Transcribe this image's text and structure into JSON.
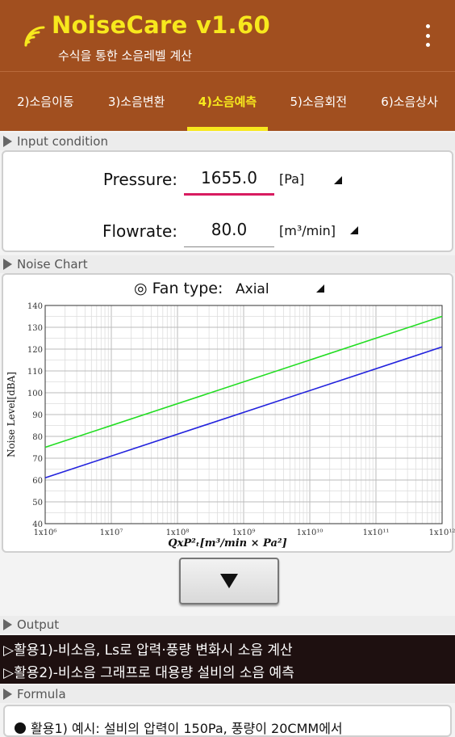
{
  "header": {
    "title": "NoiseCare v1.60",
    "subtitle": "수식을 통한 소음레벨 계산",
    "logo_icon": "wifi-signal-icon",
    "menu_icon": "more-vert-icon",
    "bg_color": "#a14f1f",
    "title_color": "#f7e81d"
  },
  "tabs": [
    {
      "label": "2)소음이동",
      "active": false
    },
    {
      "label": "3)소음변환",
      "active": false
    },
    {
      "label": "4)소음예측",
      "active": true
    },
    {
      "label": "5)소음회전",
      "active": false
    },
    {
      "label": "6)소음상사",
      "active": false
    }
  ],
  "sections": {
    "input": "Input condition",
    "chart": "Noise Chart",
    "output": "Output",
    "formula": "Formula"
  },
  "input": {
    "pressure_label": "Pressure:",
    "pressure_value": "1655.0",
    "pressure_unit": "[Pa]",
    "flowrate_label": "Flowrate:",
    "flowrate_value": "80.0",
    "flowrate_unit": "[m³/min]"
  },
  "fan": {
    "label": "◎ Fan type:",
    "value": "Axial"
  },
  "chart_data": {
    "type": "line",
    "x_scale": "log",
    "xlim": [
      1000000,
      1000000000000
    ],
    "ylim": [
      40,
      140
    ],
    "x_ticks": [
      "1x10⁶",
      "1x10⁷",
      "1x10⁸",
      "1x10⁹",
      "1x10¹⁰",
      "1x10¹¹",
      "1x10¹²"
    ],
    "y_ticks": [
      "40",
      "50",
      "60",
      "70",
      "80",
      "90",
      "100",
      "110",
      "120",
      "130",
      "140"
    ],
    "xlabel": "QxP²ₜ[m³/min × Pa²]",
    "ylabel": "Noise Level[dBA]",
    "grid": true,
    "series": [
      {
        "x": [
          1000000,
          1000000000000
        ],
        "y": [
          75,
          135
        ],
        "color": "#22dd22"
      },
      {
        "x": [
          1000000,
          1000000000000
        ],
        "y": [
          61,
          121
        ],
        "color": "#2222dd"
      }
    ]
  },
  "button": {
    "icon": "triangle-down-icon"
  },
  "output": {
    "lines": [
      "▷활용1)-비소음, Ls로 압력·풍량 변화시 소음 계산",
      "▷활용2)-비소음 그래프로 대용량 설비의 소음 예측"
    ]
  },
  "formula": {
    "text": "활용1) 예시: 설비의 압력이 150Pa, 풍량이 20CMM에서"
  }
}
